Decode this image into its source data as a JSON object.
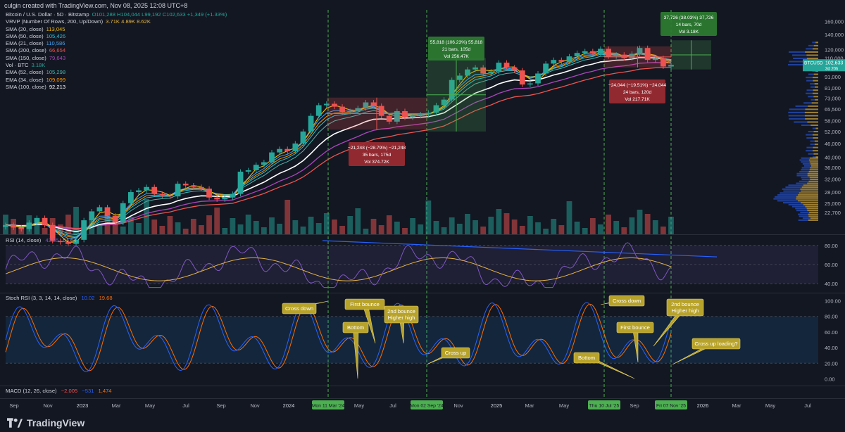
{
  "caption": "culgin created with TradingView.com, Nov 08, 2025 12:08 UTC+8",
  "brand": "TradingView",
  "legend": [
    {
      "label": "Bitcoin / U.S. Dollar · 5D · Bitstamp",
      "value": "O101,288 H104,044 L99,192 C102,633 +1,349 (+1.33%)",
      "color": "#26a69a"
    },
    {
      "label": "VRVP (Number Of Rows, 200, Up/Down)",
      "value": "3.71K 4.89K 8.62K",
      "color": "#e3b341"
    },
    {
      "label": "SMA (20, close)",
      "value": "113,045",
      "color": "#f0b90b"
    },
    {
      "label": "SMA (50, close)",
      "value": "105,426",
      "color": "#26c6da"
    },
    {
      "label": "EMA (21, close)",
      "value": "110,586",
      "color": "#42a5f5"
    },
    {
      "label": "SMA (200, close)",
      "value": "66,654",
      "color": "#ef5350"
    },
    {
      "label": "SMA (150, close)",
      "value": "79,643",
      "color": "#ab47bc"
    },
    {
      "label": "Vol · BTC",
      "value": "3.18K",
      "color": "#26a69a"
    },
    {
      "label": "EMA (52, close)",
      "value": "105,298",
      "color": "#4db6ac"
    },
    {
      "label": "EMA (34, close)",
      "value": "109,099",
      "color": "#ff9800"
    },
    {
      "label": "SMA (100, close)",
      "value": "92,213",
      "color": "#ffffff"
    }
  ],
  "rsi_label": {
    "name": "RSI (14, close)",
    "v1": "42.85",
    "v2": "51.64"
  },
  "stoch_label": {
    "name": "Stoch RSI (3, 3, 14, 14, close)",
    "v1": "10.02",
    "v2": "19.68"
  },
  "macd_label": {
    "name": "MACD (12, 26, close)",
    "v1": "−2,005",
    "v2": "−531",
    "v3": "1,474"
  },
  "colors": {
    "up": "#26a69a",
    "down": "#ef5350",
    "bg": "#131722",
    "grid": "#1e222d",
    "vline": "#4caf50",
    "callout": "#b8a32a",
    "rsi": "#7e57c2",
    "stoch_k": "#2962ff",
    "stoch_d": "#ff6d00"
  },
  "chart_data": {
    "type": "candlestick",
    "symbol": "BTCUSD",
    "timeframe": "5D",
    "price_axis": [
      "160,000",
      "140,000",
      "120,000",
      "110,000",
      "100,000",
      "91,000",
      "81,000",
      "73,000",
      "65,500",
      "58,000",
      "52,000",
      "46,000",
      "40,000",
      "36,000",
      "32,000",
      "28,000",
      "25,000",
      "22,700"
    ],
    "price_log_scale": true,
    "price_ylim": [
      19000,
      175000
    ],
    "rsi_axis": [
      "80.00",
      "60.00",
      "40.00"
    ],
    "stoch_axis": [
      "100.00",
      "80.00",
      "60.00",
      "40.00",
      "20.00",
      "0.00"
    ],
    "x_ticks": [
      "Sep",
      "Nov",
      "2023",
      "Mar",
      "May",
      "Jul",
      "Sep",
      "Nov",
      "2024",
      "May",
      "Jul",
      "Nov",
      "2025",
      "Mar",
      "May",
      "Sep",
      "2026",
      "Mar",
      "May",
      "Jul"
    ],
    "x_highlights": [
      "Mon 11 Mar '24",
      "Mon 02 Sep '24",
      "Thu 10 Jul '25",
      "Fri 07 Nov '25"
    ],
    "last_price": {
      "symbol": "BTCUSD",
      "price": "102,633",
      "countdown": "3d 20h"
    },
    "close_series": [
      20000,
      19500,
      19200,
      20500,
      21500,
      20000,
      17000,
      16800,
      16500,
      17200,
      21000,
      23000,
      24000,
      22000,
      20500,
      25000,
      28000,
      28500,
      29500,
      27500,
      27000,
      26800,
      30500,
      30000,
      29500,
      29000,
      26500,
      26000,
      26500,
      27500,
      34500,
      35000,
      37000,
      38000,
      42000,
      43500,
      42500,
      46000,
      52000,
      61000,
      68000,
      69000,
      67000,
      63500,
      64000,
      66000,
      70000,
      67500,
      61000,
      57500,
      64000,
      60000,
      61000,
      62000,
      63000,
      68000,
      72000,
      88000,
      92000,
      98000,
      100000,
      94000,
      96000,
      105000,
      100000,
      97000,
      84000,
      85000,
      94000,
      104000,
      108000,
      106000,
      112000,
      116000,
      118000,
      115000,
      121000,
      112000,
      114000,
      110000,
      115000,
      122000,
      108000,
      110000,
      101000,
      102633
    ],
    "measures": [
      {
        "label": "55,818 (106.23%) 55,818",
        "bars": "21 bars, 105d",
        "vol": "Vol 256.47K",
        "dir": "up"
      },
      {
        "label": "−21,248 (−28.79%) −21,248",
        "bars": "35 bars, 175d",
        "vol": "Vol 374.72K",
        "dir": "down"
      },
      {
        "label": "37,726 (38.03%) 37,726",
        "bars": "14 bars, 70d",
        "vol": "Vol 3.18K",
        "dir": "up"
      },
      {
        "label": "−24,044 (−19.51%) −24,044",
        "bars": "24 bars, 120d",
        "vol": "Vol 217.71K",
        "dir": "down"
      }
    ],
    "annotations": [
      "Cross down",
      "Bottom",
      "First bounce",
      "2nd bounce\nHigher high",
      "Cross up",
      "Cross down",
      "Bottom",
      "First bounce",
      "2nd bounce\nHigher high",
      "Cross up loading?"
    ]
  }
}
